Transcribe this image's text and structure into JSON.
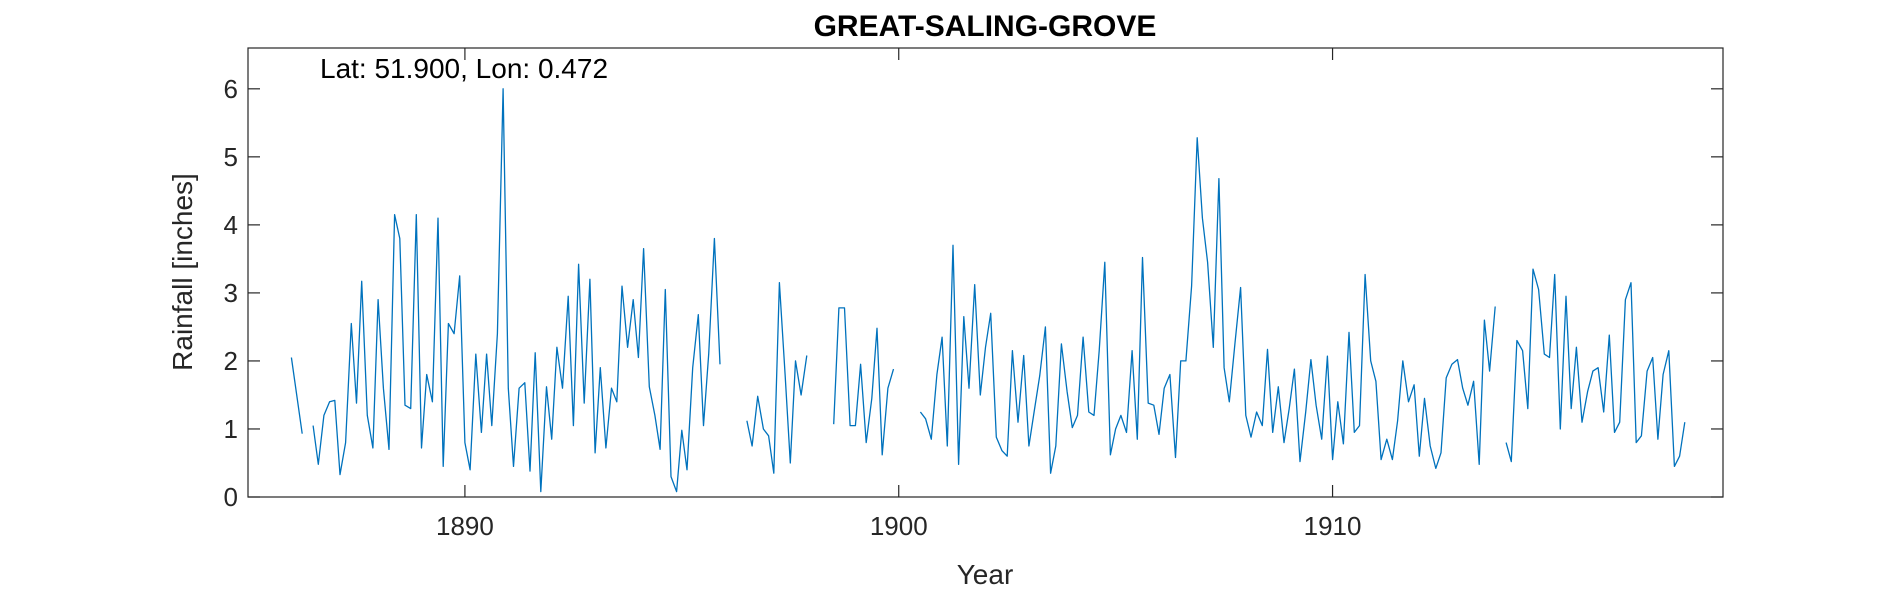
{
  "chart_data": {
    "type": "line",
    "title": "GREAT-SALING-GROVE",
    "xlabel": "Year",
    "ylabel": "Rainfall [inches]",
    "annotation": "Lat: 51.900, Lon: 0.472",
    "xlim": [
      1885,
      1919
    ],
    "ylim": [
      0,
      6.6
    ],
    "xticks": [
      1890,
      1900,
      1910
    ],
    "yticks": [
      0,
      1,
      2,
      3,
      4,
      5,
      6
    ],
    "grid": false,
    "line_color": "#0072BD",
    "series": [
      {
        "values": [
          [
            1886.0,
            2.05
          ],
          [
            1886.25,
            0.93
          ],
          null,
          [
            1886.5,
            1.05
          ],
          [
            1886.62,
            0.48
          ],
          [
            1886.75,
            1.2
          ],
          [
            1886.88,
            1.4
          ],
          [
            1887.0,
            1.42
          ],
          [
            1887.12,
            0.33
          ],
          [
            1887.25,
            0.8
          ],
          [
            1887.38,
            2.55
          ],
          [
            1887.5,
            1.38
          ],
          [
            1887.62,
            3.17
          ],
          [
            1887.75,
            1.2
          ],
          [
            1887.88,
            0.72
          ],
          [
            1888.0,
            2.9
          ],
          [
            1888.12,
            1.6
          ],
          [
            1888.25,
            0.7
          ],
          [
            1888.38,
            4.15
          ],
          [
            1888.5,
            3.8
          ],
          [
            1888.62,
            1.35
          ],
          [
            1888.75,
            1.3
          ],
          [
            1888.88,
            4.15
          ],
          [
            1889.0,
            0.72
          ],
          [
            1889.12,
            1.8
          ],
          [
            1889.25,
            1.4
          ],
          [
            1889.38,
            4.1
          ],
          [
            1889.5,
            0.45
          ],
          [
            1889.62,
            2.55
          ],
          [
            1889.75,
            2.4
          ],
          [
            1889.88,
            3.25
          ],
          [
            1890.0,
            0.8
          ],
          [
            1890.12,
            0.4
          ],
          [
            1890.25,
            2.1
          ],
          [
            1890.38,
            0.95
          ],
          [
            1890.5,
            2.1
          ],
          [
            1890.62,
            1.05
          ],
          [
            1890.75,
            2.4
          ],
          [
            1890.88,
            6.0
          ],
          [
            1891.0,
            1.6
          ],
          [
            1891.12,
            0.45
          ],
          [
            1891.25,
            1.6
          ],
          [
            1891.38,
            1.68
          ],
          [
            1891.5,
            0.38
          ],
          [
            1891.62,
            2.12
          ],
          [
            1891.75,
            0.08
          ],
          [
            1891.88,
            1.62
          ],
          [
            1892.0,
            0.85
          ],
          [
            1892.12,
            2.2
          ],
          [
            1892.25,
            1.6
          ],
          [
            1892.38,
            2.95
          ],
          [
            1892.5,
            1.05
          ],
          [
            1892.62,
            3.42
          ],
          [
            1892.75,
            1.38
          ],
          [
            1892.88,
            3.2
          ],
          [
            1893.0,
            0.65
          ],
          [
            1893.12,
            1.9
          ],
          [
            1893.25,
            0.72
          ],
          [
            1893.38,
            1.6
          ],
          [
            1893.5,
            1.4
          ],
          [
            1893.62,
            3.1
          ],
          [
            1893.75,
            2.2
          ],
          [
            1893.88,
            2.9
          ],
          [
            1894.0,
            2.05
          ],
          [
            1894.12,
            3.65
          ],
          [
            1894.25,
            1.62
          ],
          [
            1894.38,
            1.2
          ],
          [
            1894.5,
            0.7
          ],
          [
            1894.62,
            3.05
          ],
          [
            1894.75,
            0.3
          ],
          [
            1894.88,
            0.08
          ],
          [
            1895.0,
            0.98
          ],
          [
            1895.12,
            0.4
          ],
          [
            1895.25,
            1.9
          ],
          [
            1895.38,
            2.68
          ],
          [
            1895.5,
            1.05
          ],
          [
            1895.62,
            2.1
          ],
          [
            1895.75,
            3.8
          ],
          [
            1895.88,
            1.95
          ],
          null,
          [
            1896.5,
            1.12
          ],
          [
            1896.62,
            0.75
          ],
          [
            1896.75,
            1.48
          ],
          [
            1896.88,
            1.0
          ],
          [
            1897.0,
            0.9
          ],
          [
            1897.12,
            0.35
          ],
          [
            1897.25,
            3.15
          ],
          [
            1897.38,
            1.8
          ],
          [
            1897.5,
            0.5
          ],
          [
            1897.62,
            2.0
          ],
          [
            1897.75,
            1.5
          ],
          [
            1897.88,
            2.08
          ],
          null,
          [
            1898.5,
            1.07
          ],
          [
            1898.62,
            2.78
          ],
          [
            1898.75,
            2.78
          ],
          [
            1898.88,
            1.05
          ],
          [
            1899.0,
            1.05
          ],
          [
            1899.12,
            1.95
          ],
          [
            1899.25,
            0.8
          ],
          [
            1899.38,
            1.45
          ],
          [
            1899.5,
            2.48
          ],
          [
            1899.62,
            0.62
          ],
          [
            1899.75,
            1.6
          ],
          [
            1899.88,
            1.88
          ],
          null,
          [
            1900.5,
            1.25
          ],
          [
            1900.62,
            1.15
          ],
          [
            1900.75,
            0.85
          ],
          [
            1900.88,
            1.8
          ],
          [
            1901.0,
            2.35
          ],
          [
            1901.12,
            0.75
          ],
          [
            1901.25,
            3.7
          ],
          [
            1901.38,
            0.48
          ],
          [
            1901.5,
            2.65
          ],
          [
            1901.62,
            1.6
          ],
          [
            1901.75,
            3.12
          ],
          [
            1901.88,
            1.5
          ],
          [
            1902.0,
            2.2
          ],
          [
            1902.12,
            2.7
          ],
          [
            1902.25,
            0.88
          ],
          [
            1902.38,
            0.68
          ],
          [
            1902.5,
            0.6
          ],
          [
            1902.62,
            2.15
          ],
          [
            1902.75,
            1.1
          ],
          [
            1902.88,
            2.08
          ],
          [
            1903.0,
            0.75
          ],
          [
            1903.12,
            1.25
          ],
          [
            1903.25,
            1.78
          ],
          [
            1903.38,
            2.5
          ],
          [
            1903.5,
            0.35
          ],
          [
            1903.62,
            0.75
          ],
          [
            1903.75,
            2.25
          ],
          [
            1903.88,
            1.55
          ],
          [
            1904.0,
            1.02
          ],
          [
            1904.12,
            1.2
          ],
          [
            1904.25,
            2.35
          ],
          [
            1904.38,
            1.25
          ],
          [
            1904.5,
            1.2
          ],
          [
            1904.62,
            2.15
          ],
          [
            1904.75,
            3.45
          ],
          [
            1904.88,
            0.62
          ],
          [
            1905.0,
            1.0
          ],
          [
            1905.12,
            1.2
          ],
          [
            1905.25,
            0.95
          ],
          [
            1905.38,
            2.15
          ],
          [
            1905.5,
            0.85
          ],
          [
            1905.62,
            3.52
          ],
          [
            1905.75,
            1.38
          ],
          [
            1905.88,
            1.35
          ],
          [
            1906.0,
            0.92
          ],
          [
            1906.12,
            1.6
          ],
          [
            1906.25,
            1.8
          ],
          [
            1906.38,
            0.58
          ],
          [
            1906.5,
            2.0
          ],
          [
            1906.62,
            2.0
          ],
          [
            1906.75,
            3.1
          ],
          [
            1906.88,
            5.28
          ],
          [
            1907.0,
            4.1
          ],
          [
            1907.12,
            3.45
          ],
          [
            1907.25,
            2.2
          ],
          [
            1907.38,
            4.68
          ],
          [
            1907.5,
            1.9
          ],
          [
            1907.62,
            1.4
          ],
          [
            1907.75,
            2.25
          ],
          [
            1907.88,
            3.08
          ],
          [
            1908.0,
            1.2
          ],
          [
            1908.12,
            0.88
          ],
          [
            1908.25,
            1.25
          ],
          [
            1908.38,
            1.05
          ],
          [
            1908.5,
            2.17
          ],
          [
            1908.62,
            0.95
          ],
          [
            1908.75,
            1.62
          ],
          [
            1908.88,
            0.8
          ],
          [
            1909.0,
            1.3
          ],
          [
            1909.12,
            1.88
          ],
          [
            1909.25,
            0.52
          ],
          [
            1909.38,
            1.25
          ],
          [
            1909.5,
            2.02
          ],
          [
            1909.62,
            1.35
          ],
          [
            1909.75,
            0.85
          ],
          [
            1909.88,
            2.07
          ],
          [
            1910.0,
            0.55
          ],
          [
            1910.12,
            1.4
          ],
          [
            1910.25,
            0.78
          ],
          [
            1910.38,
            2.42
          ],
          [
            1910.5,
            0.95
          ],
          [
            1910.62,
            1.05
          ],
          [
            1910.75,
            3.27
          ],
          [
            1910.88,
            2.0
          ],
          [
            1911.0,
            1.7
          ],
          [
            1911.12,
            0.55
          ],
          [
            1911.25,
            0.85
          ],
          [
            1911.38,
            0.55
          ],
          [
            1911.5,
            1.12
          ],
          [
            1911.62,
            2.0
          ],
          [
            1911.75,
            1.4
          ],
          [
            1911.88,
            1.65
          ],
          [
            1912.0,
            0.6
          ],
          [
            1912.12,
            1.45
          ],
          [
            1912.25,
            0.75
          ],
          [
            1912.38,
            0.42
          ],
          [
            1912.5,
            0.65
          ],
          [
            1912.62,
            1.75
          ],
          [
            1912.75,
            1.95
          ],
          [
            1912.88,
            2.02
          ],
          [
            1913.0,
            1.6
          ],
          [
            1913.12,
            1.35
          ],
          [
            1913.25,
            1.7
          ],
          [
            1913.38,
            0.48
          ],
          [
            1913.5,
            2.6
          ],
          [
            1913.62,
            1.85
          ],
          [
            1913.75,
            2.8
          ],
          null,
          [
            1914.0,
            0.8
          ],
          [
            1914.12,
            0.52
          ],
          [
            1914.25,
            2.3
          ],
          [
            1914.38,
            2.15
          ],
          [
            1914.5,
            1.3
          ],
          [
            1914.62,
            3.35
          ],
          [
            1914.75,
            3.05
          ],
          [
            1914.88,
            2.1
          ],
          [
            1915.0,
            2.05
          ],
          [
            1915.12,
            3.27
          ],
          [
            1915.25,
            1.0
          ],
          [
            1915.38,
            2.95
          ],
          [
            1915.5,
            1.3
          ],
          [
            1915.62,
            2.2
          ],
          [
            1915.75,
            1.1
          ],
          [
            1915.88,
            1.55
          ],
          [
            1916.0,
            1.85
          ],
          [
            1916.12,
            1.9
          ],
          [
            1916.25,
            1.25
          ],
          [
            1916.38,
            2.38
          ],
          [
            1916.5,
            0.95
          ],
          [
            1916.62,
            1.1
          ],
          [
            1916.75,
            2.9
          ],
          [
            1916.88,
            3.15
          ],
          [
            1917.0,
            0.8
          ],
          [
            1917.12,
            0.9
          ],
          [
            1917.25,
            1.85
          ],
          [
            1917.38,
            2.05
          ],
          [
            1917.5,
            0.85
          ],
          [
            1917.62,
            1.8
          ],
          [
            1917.75,
            2.15
          ],
          [
            1917.88,
            0.45
          ],
          [
            1918.0,
            0.6
          ],
          [
            1918.12,
            1.1
          ]
        ]
      }
    ]
  }
}
